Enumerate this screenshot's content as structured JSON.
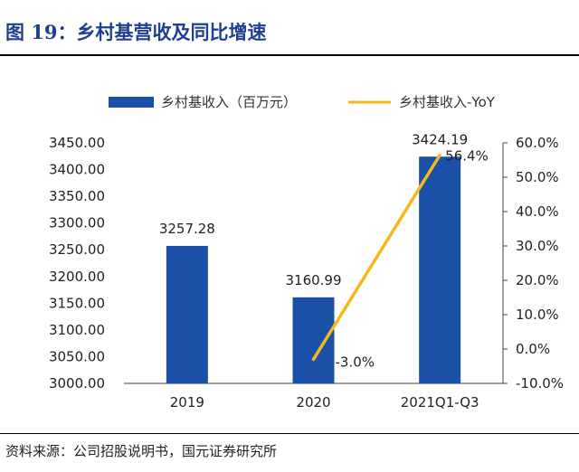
{
  "figure_title": "图 19：乡村基营收及同比增速",
  "source": "资料来源：公司招股说明书，国元证券研究所",
  "colors": {
    "bar": "#1a50a8",
    "line": "#f4b81c",
    "title": "#1f3f8f"
  },
  "chart_data": {
    "type": "bar",
    "categories": [
      "2019",
      "2020",
      "2021Q1-Q3"
    ],
    "series": [
      {
        "name": "乡村基收入（百万元）",
        "type": "bar",
        "axis": "left",
        "values": [
          3257.28,
          3160.99,
          3424.19
        ],
        "labels": [
          "3257.28",
          "3160.99",
          "3424.19"
        ]
      },
      {
        "name": "乡村基收入-YoY",
        "type": "line",
        "axis": "right",
        "values": [
          null,
          -3.0,
          56.4
        ],
        "labels": [
          "",
          "-3.0%",
          "56.4%"
        ]
      }
    ],
    "ylim_left": [
      3000,
      3450
    ],
    "yticks_left": [
      "3000.00",
      "3050.00",
      "3100.00",
      "3150.00",
      "3200.00",
      "3250.00",
      "3300.00",
      "3350.00",
      "3400.00",
      "3450.00"
    ],
    "ylim_right": [
      -10,
      60
    ],
    "yticks_right": [
      "-10.0%",
      "0.0%",
      "10.0%",
      "20.0%",
      "30.0%",
      "40.0%",
      "50.0%",
      "60.0%"
    ],
    "legend_position": "top",
    "grid": false
  }
}
